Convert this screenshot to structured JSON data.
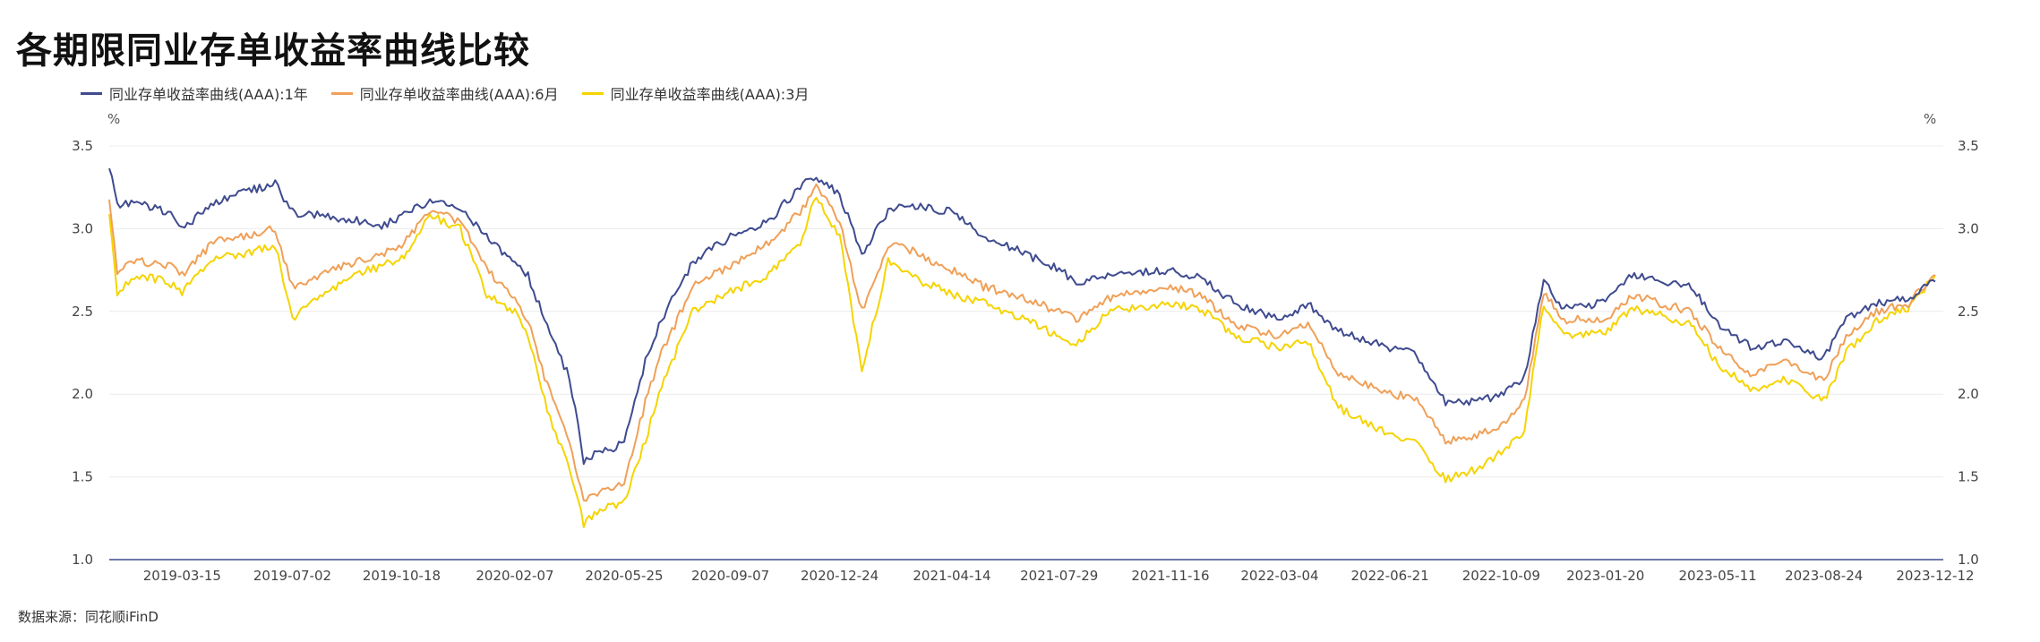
{
  "title": "各期限同业存单收益率曲线比较",
  "unit_left": "%",
  "unit_right": "%",
  "source": "数据来源：同花顺iFinD",
  "chart_data": {
    "type": "line",
    "title": "各期限同业存单收益率曲线比较",
    "ylim": [
      1.0,
      3.5
    ],
    "y_ticks": [
      "1.0",
      "1.5",
      "2.0",
      "2.5",
      "3.0",
      "3.5"
    ],
    "x_ticks": [
      "2019-03-15",
      "2019-07-02",
      "2019-10-18",
      "2020-02-07",
      "2020-05-25",
      "2020-09-07",
      "2020-12-24",
      "2021-04-14",
      "2021-07-29",
      "2021-11-16",
      "2022-03-04",
      "2022-06-21",
      "2022-10-09",
      "2023-01-20",
      "2023-05-11",
      "2023-08-24",
      "2023-12-12"
    ],
    "grid": true,
    "legend_position": "top-left",
    "series": [
      {
        "name": "同业存单收益率曲线(AAA):1年",
        "color": "#3f4b8f",
        "points": [
          [
            "2019-01-02",
            3.38
          ],
          [
            "2019-01-10",
            3.15
          ],
          [
            "2019-02-01",
            3.15
          ],
          [
            "2019-03-01",
            3.1
          ],
          [
            "2019-03-15",
            3.0
          ],
          [
            "2019-04-15",
            3.15
          ],
          [
            "2019-05-15",
            3.22
          ],
          [
            "2019-06-15",
            3.27
          ],
          [
            "2019-07-02",
            3.1
          ],
          [
            "2019-08-01",
            3.08
          ],
          [
            "2019-09-01",
            3.05
          ],
          [
            "2019-10-01",
            3.02
          ],
          [
            "2019-10-18",
            3.08
          ],
          [
            "2019-11-15",
            3.17
          ],
          [
            "2019-12-15",
            3.12
          ],
          [
            "2020-01-10",
            2.95
          ],
          [
            "2020-02-07",
            2.78
          ],
          [
            "2020-02-20",
            2.72
          ],
          [
            "2020-03-10",
            2.4
          ],
          [
            "2020-04-01",
            2.1
          ],
          [
            "2020-04-15",
            1.6
          ],
          [
            "2020-05-01",
            1.65
          ],
          [
            "2020-05-25",
            1.7
          ],
          [
            "2020-06-15",
            2.2
          ],
          [
            "2020-07-01",
            2.45
          ],
          [
            "2020-08-01",
            2.8
          ],
          [
            "2020-09-07",
            2.95
          ],
          [
            "2020-10-15",
            3.05
          ],
          [
            "2020-11-15",
            3.25
          ],
          [
            "2020-12-01",
            3.32
          ],
          [
            "2020-12-24",
            3.2
          ],
          [
            "2021-01-15",
            2.85
          ],
          [
            "2021-02-10",
            3.1
          ],
          [
            "2021-03-01",
            3.15
          ],
          [
            "2021-04-14",
            3.1
          ],
          [
            "2021-05-15",
            2.95
          ],
          [
            "2021-06-15",
            2.88
          ],
          [
            "2021-07-29",
            2.75
          ],
          [
            "2021-08-15",
            2.68
          ],
          [
            "2021-09-15",
            2.72
          ],
          [
            "2021-11-16",
            2.75
          ],
          [
            "2021-12-15",
            2.7
          ],
          [
            "2022-01-20",
            2.55
          ],
          [
            "2022-03-04",
            2.45
          ],
          [
            "2022-04-01",
            2.55
          ],
          [
            "2022-05-01",
            2.38
          ],
          [
            "2022-06-21",
            2.28
          ],
          [
            "2022-07-15",
            2.25
          ],
          [
            "2022-08-15",
            1.95
          ],
          [
            "2022-09-15",
            1.95
          ],
          [
            "2022-10-09",
            2.0
          ],
          [
            "2022-11-01",
            2.1
          ],
          [
            "2022-11-20",
            2.68
          ],
          [
            "2022-12-10",
            2.52
          ],
          [
            "2023-01-20",
            2.55
          ],
          [
            "2023-02-15",
            2.72
          ],
          [
            "2023-03-15",
            2.68
          ],
          [
            "2023-04-15",
            2.65
          ],
          [
            "2023-05-11",
            2.42
          ],
          [
            "2023-06-15",
            2.28
          ],
          [
            "2023-07-15",
            2.32
          ],
          [
            "2023-08-24",
            2.22
          ],
          [
            "2023-09-15",
            2.45
          ],
          [
            "2023-10-15",
            2.55
          ],
          [
            "2023-11-15",
            2.58
          ],
          [
            "2023-12-12",
            2.68
          ]
        ]
      },
      {
        "name": "同业存单收益率曲线(AAA):6月",
        "color": "#f0a058",
        "points": [
          [
            "2019-01-02",
            3.2
          ],
          [
            "2019-01-10",
            2.75
          ],
          [
            "2019-02-01",
            2.8
          ],
          [
            "2019-03-01",
            2.78
          ],
          [
            "2019-03-15",
            2.72
          ],
          [
            "2019-04-15",
            2.92
          ],
          [
            "2019-05-15",
            2.95
          ],
          [
            "2019-06-15",
            3.0
          ],
          [
            "2019-07-02",
            2.65
          ],
          [
            "2019-08-01",
            2.72
          ],
          [
            "2019-09-01",
            2.8
          ],
          [
            "2019-10-01",
            2.85
          ],
          [
            "2019-10-18",
            2.9
          ],
          [
            "2019-11-15",
            3.1
          ],
          [
            "2019-12-15",
            3.05
          ],
          [
            "2020-01-10",
            2.75
          ],
          [
            "2020-02-07",
            2.58
          ],
          [
            "2020-02-20",
            2.45
          ],
          [
            "2020-03-10",
            2.05
          ],
          [
            "2020-04-01",
            1.7
          ],
          [
            "2020-04-15",
            1.35
          ],
          [
            "2020-05-01",
            1.42
          ],
          [
            "2020-05-25",
            1.45
          ],
          [
            "2020-06-15",
            1.95
          ],
          [
            "2020-07-01",
            2.25
          ],
          [
            "2020-08-01",
            2.65
          ],
          [
            "2020-09-07",
            2.78
          ],
          [
            "2020-10-15",
            2.92
          ],
          [
            "2020-11-15",
            3.1
          ],
          [
            "2020-12-01",
            3.25
          ],
          [
            "2020-12-24",
            3.05
          ],
          [
            "2021-01-15",
            2.5
          ],
          [
            "2021-02-10",
            2.9
          ],
          [
            "2021-03-01",
            2.88
          ],
          [
            "2021-04-14",
            2.75
          ],
          [
            "2021-05-15",
            2.65
          ],
          [
            "2021-06-15",
            2.6
          ],
          [
            "2021-07-29",
            2.5
          ],
          [
            "2021-08-15",
            2.45
          ],
          [
            "2021-09-15",
            2.58
          ],
          [
            "2021-11-16",
            2.65
          ],
          [
            "2021-12-15",
            2.6
          ],
          [
            "2022-01-20",
            2.42
          ],
          [
            "2022-03-04",
            2.35
          ],
          [
            "2022-04-01",
            2.42
          ],
          [
            "2022-05-01",
            2.12
          ],
          [
            "2022-06-21",
            2.0
          ],
          [
            "2022-07-15",
            1.98
          ],
          [
            "2022-08-15",
            1.72
          ],
          [
            "2022-09-15",
            1.75
          ],
          [
            "2022-10-09",
            1.82
          ],
          [
            "2022-11-01",
            1.95
          ],
          [
            "2022-11-20",
            2.62
          ],
          [
            "2022-12-10",
            2.45
          ],
          [
            "2023-01-20",
            2.45
          ],
          [
            "2023-02-15",
            2.6
          ],
          [
            "2023-03-15",
            2.55
          ],
          [
            "2023-04-15",
            2.5
          ],
          [
            "2023-05-11",
            2.28
          ],
          [
            "2023-06-15",
            2.12
          ],
          [
            "2023-07-15",
            2.2
          ],
          [
            "2023-08-24",
            2.08
          ],
          [
            "2023-09-15",
            2.35
          ],
          [
            "2023-10-15",
            2.5
          ],
          [
            "2023-11-15",
            2.55
          ],
          [
            "2023-12-12",
            2.72
          ]
        ]
      },
      {
        "name": "同业存单收益率曲线(AAA):3月",
        "color": "#f5d400",
        "points": [
          [
            "2019-01-02",
            3.1
          ],
          [
            "2019-01-10",
            2.62
          ],
          [
            "2019-02-01",
            2.72
          ],
          [
            "2019-03-01",
            2.68
          ],
          [
            "2019-03-15",
            2.62
          ],
          [
            "2019-04-15",
            2.82
          ],
          [
            "2019-05-15",
            2.85
          ],
          [
            "2019-06-15",
            2.9
          ],
          [
            "2019-07-02",
            2.45
          ],
          [
            "2019-08-01",
            2.6
          ],
          [
            "2019-09-01",
            2.72
          ],
          [
            "2019-10-01",
            2.78
          ],
          [
            "2019-10-18",
            2.82
          ],
          [
            "2019-11-15",
            3.08
          ],
          [
            "2019-12-15",
            3.0
          ],
          [
            "2020-01-10",
            2.6
          ],
          [
            "2020-02-07",
            2.5
          ],
          [
            "2020-02-20",
            2.35
          ],
          [
            "2020-03-10",
            1.9
          ],
          [
            "2020-04-01",
            1.55
          ],
          [
            "2020-04-15",
            1.22
          ],
          [
            "2020-05-01",
            1.3
          ],
          [
            "2020-05-25",
            1.35
          ],
          [
            "2020-06-15",
            1.72
          ],
          [
            "2020-07-01",
            2.05
          ],
          [
            "2020-08-01",
            2.5
          ],
          [
            "2020-09-07",
            2.62
          ],
          [
            "2020-10-15",
            2.72
          ],
          [
            "2020-11-15",
            2.92
          ],
          [
            "2020-12-01",
            3.2
          ],
          [
            "2020-12-24",
            2.95
          ],
          [
            "2021-01-15",
            2.15
          ],
          [
            "2021-02-10",
            2.8
          ],
          [
            "2021-03-01",
            2.72
          ],
          [
            "2021-04-14",
            2.6
          ],
          [
            "2021-05-15",
            2.55
          ],
          [
            "2021-06-15",
            2.48
          ],
          [
            "2021-07-29",
            2.35
          ],
          [
            "2021-08-15",
            2.3
          ],
          [
            "2021-09-15",
            2.5
          ],
          [
            "2021-11-16",
            2.55
          ],
          [
            "2021-12-15",
            2.52
          ],
          [
            "2022-01-20",
            2.35
          ],
          [
            "2022-03-04",
            2.28
          ],
          [
            "2022-04-01",
            2.32
          ],
          [
            "2022-05-01",
            1.92
          ],
          [
            "2022-06-21",
            1.75
          ],
          [
            "2022-07-15",
            1.72
          ],
          [
            "2022-08-15",
            1.48
          ],
          [
            "2022-09-15",
            1.55
          ],
          [
            "2022-10-09",
            1.65
          ],
          [
            "2022-11-01",
            1.78
          ],
          [
            "2022-11-20",
            2.55
          ],
          [
            "2022-12-10",
            2.35
          ],
          [
            "2023-01-20",
            2.38
          ],
          [
            "2023-02-15",
            2.52
          ],
          [
            "2023-03-15",
            2.48
          ],
          [
            "2023-04-15",
            2.42
          ],
          [
            "2023-05-11",
            2.18
          ],
          [
            "2023-06-15",
            2.02
          ],
          [
            "2023-07-15",
            2.1
          ],
          [
            "2023-08-24",
            1.96
          ],
          [
            "2023-09-15",
            2.25
          ],
          [
            "2023-10-15",
            2.45
          ],
          [
            "2023-11-15",
            2.52
          ],
          [
            "2023-12-12",
            2.72
          ]
        ]
      }
    ]
  }
}
